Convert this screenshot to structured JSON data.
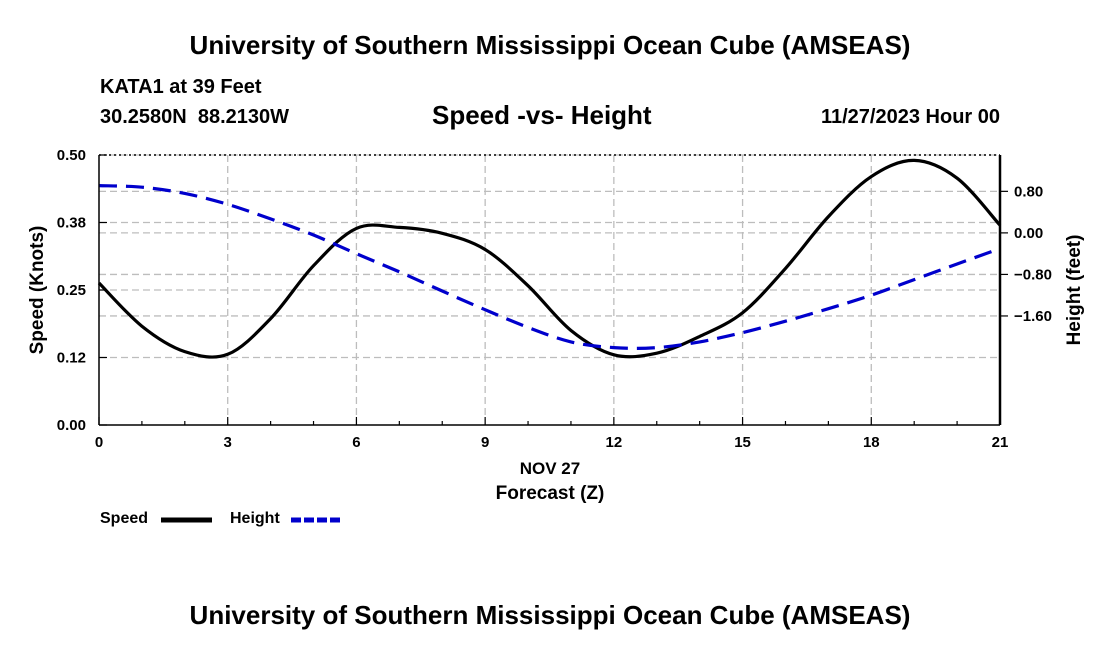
{
  "header": {
    "title": "University of Southern Mississippi Ocean Cube (AMSEAS)",
    "station": "KATA1 at 39 Feet",
    "coords": "30.2580N  88.2130W",
    "subtitle": "Speed -vs- Height",
    "datetime": "11/27/2023 Hour 00"
  },
  "footer": {
    "title": "University of Southern Mississippi Ocean Cube (AMSEAS)"
  },
  "chart_data": {
    "type": "line",
    "title": "Speed -vs- Height",
    "xlabel": "Forecast (Z)",
    "xlabel_date": "NOV 27",
    "ylabel": "Speed (Knots)",
    "y2label": "Height (feet)",
    "xlim": [
      0,
      21
    ],
    "ylim": [
      0,
      0.5
    ],
    "y2lim": [
      -3.7,
      1.5
    ],
    "x_ticks": [
      0,
      3,
      6,
      9,
      12,
      15,
      18,
      21
    ],
    "x_tick_labels": [
      "0",
      "3",
      "6",
      "9",
      "12",
      "15",
      "18",
      "21"
    ],
    "y_ticks": [
      0.0,
      0.125,
      0.25,
      0.375,
      0.5
    ],
    "y_tick_labels": [
      "0.00",
      "0.12",
      "0.25",
      "0.38",
      "0.50"
    ],
    "y2_ticks": [
      0.8,
      0.0,
      -0.8,
      -1.6
    ],
    "y2_tick_labels": [
      "0.80",
      "0.00",
      "−0.80",
      "−1.60"
    ],
    "grid": true,
    "series": [
      {
        "name": "Speed",
        "axis": "left",
        "color": "#000000",
        "dash": "solid",
        "x": [
          0,
          1,
          2,
          3,
          4,
          5,
          6,
          7,
          8,
          9,
          10,
          11,
          12,
          13,
          14,
          15,
          16,
          17,
          18,
          19,
          20,
          21
        ],
        "values": [
          0.263,
          0.183,
          0.136,
          0.131,
          0.197,
          0.295,
          0.364,
          0.366,
          0.355,
          0.325,
          0.258,
          0.175,
          0.13,
          0.133,
          0.164,
          0.208,
          0.29,
          0.386,
          0.46,
          0.49,
          0.457,
          0.37
        ]
      },
      {
        "name": "Height",
        "axis": "right",
        "color": "#0000cc",
        "dash": "dashed",
        "x": [
          0,
          1,
          2,
          3,
          4,
          5,
          6,
          7,
          8,
          9,
          10,
          11,
          12,
          13,
          14,
          15,
          16,
          17,
          18,
          19,
          20,
          21
        ],
        "values": [
          0.91,
          0.88,
          0.76,
          0.55,
          0.27,
          -0.04,
          -0.4,
          -0.75,
          -1.12,
          -1.48,
          -1.82,
          -2.1,
          -2.21,
          -2.21,
          -2.1,
          -1.92,
          -1.7,
          -1.46,
          -1.2,
          -0.9,
          -0.6,
          -0.3
        ]
      }
    ]
  }
}
